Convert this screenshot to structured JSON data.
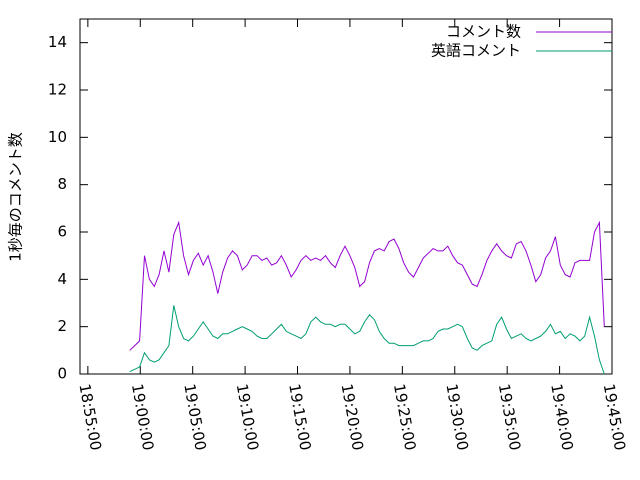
{
  "chart_data": {
    "type": "line",
    "ylabel": "1秒毎のコメント数",
    "x": [
      "18:59:00",
      "18:59:28",
      "18:59:56",
      "19:00:24",
      "19:00:52",
      "19:01:20",
      "19:01:48",
      "19:02:16",
      "19:02:44",
      "19:03:12",
      "19:03:40",
      "19:04:08",
      "19:04:36",
      "19:05:04",
      "19:05:32",
      "19:06:00",
      "19:06:28",
      "19:06:56",
      "19:07:24",
      "19:07:52",
      "19:08:20",
      "19:08:48",
      "19:09:16",
      "19:09:44",
      "19:10:12",
      "19:10:40",
      "19:11:08",
      "19:11:36",
      "19:12:04",
      "19:12:32",
      "19:13:00",
      "19:13:28",
      "19:13:56",
      "19:14:24",
      "19:14:52",
      "19:15:20",
      "19:15:48",
      "19:16:16",
      "19:16:44",
      "19:17:12",
      "19:17:40",
      "19:18:08",
      "19:18:36",
      "19:19:04",
      "19:19:32",
      "19:20:00",
      "19:20:28",
      "19:20:56",
      "19:21:24",
      "19:21:52",
      "19:22:20",
      "19:22:48",
      "19:23:16",
      "19:23:44",
      "19:24:12",
      "19:24:40",
      "19:25:08",
      "19:25:36",
      "19:26:04",
      "19:26:32",
      "19:27:00",
      "19:27:28",
      "19:27:56",
      "19:28:24",
      "19:28:52",
      "19:29:20",
      "19:29:48",
      "19:30:16",
      "19:30:44",
      "19:31:12",
      "19:31:40",
      "19:32:08",
      "19:32:36",
      "19:33:04",
      "19:33:32",
      "19:34:00",
      "19:34:28",
      "19:34:56",
      "19:35:24",
      "19:35:52",
      "19:36:20",
      "19:36:48",
      "19:37:16",
      "19:37:44",
      "19:38:12",
      "19:38:40",
      "19:39:08",
      "19:39:36",
      "19:40:04",
      "19:40:32",
      "19:41:00",
      "19:41:28",
      "19:41:56",
      "19:42:24",
      "19:42:52",
      "19:43:20",
      "19:43:48",
      "19:44:16"
    ],
    "series": [
      {
        "name": "コメント数",
        "color": "#9400d3",
        "values": [
          1.0,
          1.2,
          1.4,
          5.0,
          4.0,
          3.7,
          4.2,
          5.2,
          4.3,
          5.9,
          6.4,
          5.0,
          4.2,
          4.8,
          5.1,
          4.6,
          5.0,
          4.3,
          3.4,
          4.3,
          4.9,
          5.2,
          5.0,
          4.4,
          4.6,
          5.0,
          5.0,
          4.8,
          4.9,
          4.6,
          4.7,
          5.0,
          4.6,
          4.1,
          4.4,
          4.8,
          5.0,
          4.8,
          4.9,
          4.8,
          5.0,
          4.7,
          4.5,
          5.0,
          5.4,
          5.0,
          4.5,
          3.7,
          3.9,
          4.7,
          5.2,
          5.3,
          5.2,
          5.6,
          5.7,
          5.3,
          4.7,
          4.3,
          4.1,
          4.5,
          4.9,
          5.1,
          5.3,
          5.2,
          5.2,
          5.4,
          5.0,
          4.7,
          4.6,
          4.2,
          3.8,
          3.7,
          4.2,
          4.8,
          5.2,
          5.5,
          5.2,
          5.0,
          4.9,
          5.5,
          5.6,
          5.2,
          4.6,
          3.9,
          4.2,
          4.9,
          5.2,
          5.8,
          4.6,
          4.2,
          4.1,
          4.7,
          4.8,
          4.8,
          4.8,
          6.0,
          6.4,
          2.0
        ]
      },
      {
        "name": "英語コメント",
        "color": "#009e73",
        "values": [
          0.1,
          0.2,
          0.3,
          0.9,
          0.6,
          0.5,
          0.6,
          0.9,
          1.2,
          2.9,
          2.0,
          1.5,
          1.4,
          1.6,
          1.9,
          2.2,
          1.9,
          1.6,
          1.5,
          1.7,
          1.7,
          1.8,
          1.9,
          2.0,
          1.9,
          1.8,
          1.6,
          1.5,
          1.5,
          1.7,
          1.9,
          2.1,
          1.8,
          1.7,
          1.6,
          1.5,
          1.7,
          2.2,
          2.4,
          2.2,
          2.1,
          2.1,
          2.0,
          2.1,
          2.1,
          1.9,
          1.7,
          1.8,
          2.2,
          2.5,
          2.3,
          1.8,
          1.5,
          1.3,
          1.3,
          1.2,
          1.2,
          1.2,
          1.2,
          1.3,
          1.4,
          1.4,
          1.5,
          1.8,
          1.9,
          1.9,
          2.0,
          2.1,
          2.0,
          1.5,
          1.1,
          1.0,
          1.2,
          1.3,
          1.4,
          2.1,
          2.4,
          1.9,
          1.5,
          1.6,
          1.7,
          1.5,
          1.4,
          1.5,
          1.6,
          1.8,
          2.1,
          1.7,
          1.8,
          1.5,
          1.7,
          1.6,
          1.4,
          1.6,
          2.4,
          1.6,
          0.6,
          0.0
        ]
      }
    ],
    "xlim": [
      "18:54:15",
      "19:45:00"
    ],
    "xticks": [
      "18:55:00",
      "19:00:00",
      "19:05:00",
      "19:10:00",
      "19:15:00",
      "19:20:00",
      "19:25:00",
      "19:30:00",
      "19:35:00",
      "19:40:00",
      "19:45:00"
    ],
    "ylim": [
      0,
      15
    ],
    "yticks": [
      0,
      2,
      4,
      6,
      8,
      10,
      12,
      14
    ],
    "legend": "top-right"
  }
}
